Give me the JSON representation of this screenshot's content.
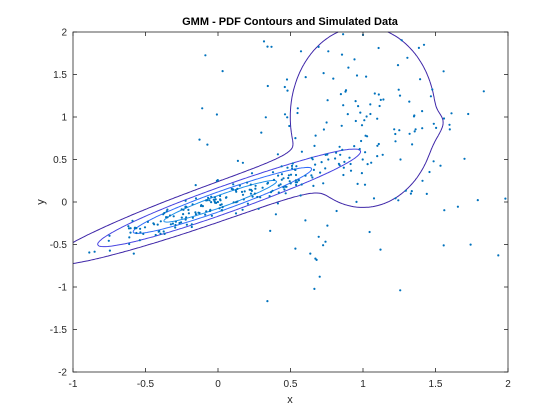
{
  "chart_data": {
    "type": "scatter",
    "title": "GMM - PDF Contours and Simulated Data",
    "xlabel": "x",
    "ylabel": "y",
    "xlim": [
      -1,
      2
    ],
    "ylim": [
      -2,
      2
    ],
    "xticks": [
      "-1",
      "-0.5",
      "0",
      "0.5",
      "1",
      "1.5",
      "2"
    ],
    "yticks": [
      "-2",
      "-1.5",
      "-1",
      "-0.5",
      "0",
      "0.5",
      "1",
      "1.5",
      "2"
    ],
    "grid": false,
    "box": true,
    "legend": "none",
    "mixture_components": [
      {
        "mean": [
          0,
          0
        ],
        "sigma": [
          [
            0.25,
            0.15
          ],
          [
            0.15,
            0.1
          ]
        ],
        "weight": 0.5
      },
      {
        "mean": [
          1,
          1
        ],
        "sigma": [
          [
            0.2,
            0
          ],
          [
            0,
            0.9
          ]
        ],
        "weight": 0.5
      }
    ],
    "contour_levels": [
      0.1,
      0.4,
      0.8,
      1.2,
      1.6,
      2.0,
      2.4,
      2.8,
      3.2,
      3.6,
      4.0
    ],
    "points_per_component": 200,
    "colors": {
      "scatter": "#0072BD",
      "colormap": [
        "#3E26A8",
        "#4743E0",
        "#2F6BFA",
        "#1D8FEA",
        "#13A7D6",
        "#2BB8B0",
        "#5CC388",
        "#99C54F",
        "#D8BC2E",
        "#F8C832",
        "#F9E51E"
      ]
    }
  }
}
